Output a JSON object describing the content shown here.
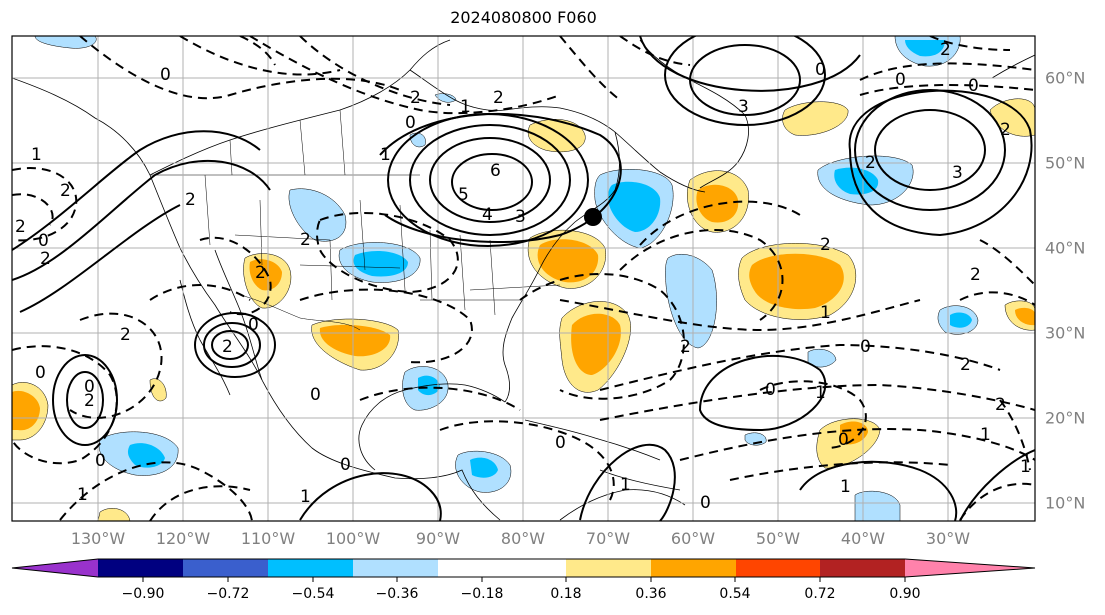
{
  "title": "2024080800 F060",
  "lon_labels": [
    "130°W",
    "120°W",
    "110°W",
    "100°W",
    "90°W",
    "80°W",
    "70°W",
    "60°W",
    "50°W",
    "40°W",
    "30°W"
  ],
  "lat_labels": [
    "60°N",
    "50°N",
    "40°N",
    "30°N",
    "20°N",
    "10°N"
  ],
  "colorbar": {
    "ticks": [
      "−0.90",
      "−0.72",
      "−0.54",
      "−0.36",
      "−0.18",
      "0.18",
      "0.36",
      "0.54",
      "0.72",
      "0.90"
    ],
    "colors": [
      "#9932cc",
      "#000080",
      "#3a5fcd",
      "#00bfff",
      "#b0e0ff",
      "#ffffff",
      "#ffe98a",
      "#ffa500",
      "#ff4500",
      "#b22222",
      "#ff82ab"
    ]
  },
  "contour_labels": [
    "0",
    "1",
    "2",
    "3",
    "4",
    "5",
    "6",
    "0",
    "2",
    "0",
    "2",
    "1",
    "2",
    "0",
    "2",
    "2",
    "0",
    "1",
    "2",
    "1",
    "2",
    "3",
    "0",
    "2",
    "1",
    "0",
    "1",
    "0",
    "2",
    "3",
    "2",
    "0",
    "1",
    "0",
    "2",
    "2",
    "2",
    "1",
    "0",
    "2",
    "0",
    "1"
  ],
  "colors": {
    "warm_light": "#ffe98a",
    "warm": "#ffa500",
    "cool_light": "#b0e0ff",
    "cool": "#00bfff",
    "grid": "#b0b0b0",
    "label": "#808080"
  }
}
